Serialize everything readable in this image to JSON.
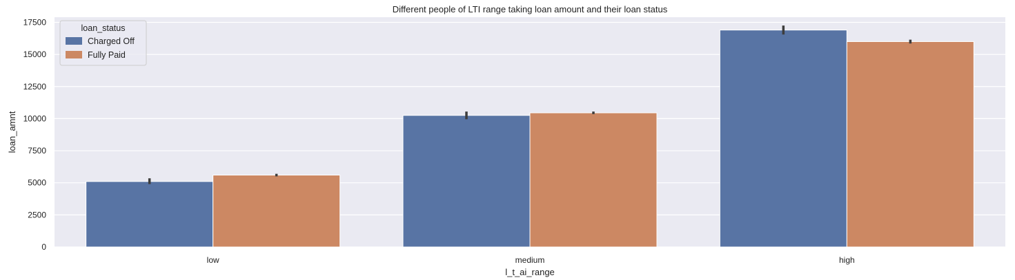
{
  "chart_data": {
    "type": "bar",
    "title": "Different people of LTI range taking loan amount and their loan status",
    "xlabel": "l_t_ai_range",
    "ylabel": "loan_amnt",
    "categories": [
      "low",
      "medium",
      "high"
    ],
    "ylim": [
      0,
      17900
    ],
    "yticks": [
      0,
      2500,
      5000,
      7500,
      10000,
      12500,
      15000,
      17500
    ],
    "grid": true,
    "legend": {
      "title": "loan_status",
      "placement": "top-left"
    },
    "series": [
      {
        "name": "Charged Off",
        "color": "#5874a4",
        "values": [
          5100,
          10250,
          16900
        ],
        "err_low": [
          4900,
          9950,
          16550
        ],
        "err_high": [
          5350,
          10550,
          17250
        ]
      },
      {
        "name": "Fully Paid",
        "color": "#cc8863",
        "values": [
          5600,
          10450,
          16000
        ],
        "err_low": [
          5500,
          10350,
          15850
        ],
        "err_high": [
          5700,
          10550,
          16150
        ]
      }
    ]
  }
}
